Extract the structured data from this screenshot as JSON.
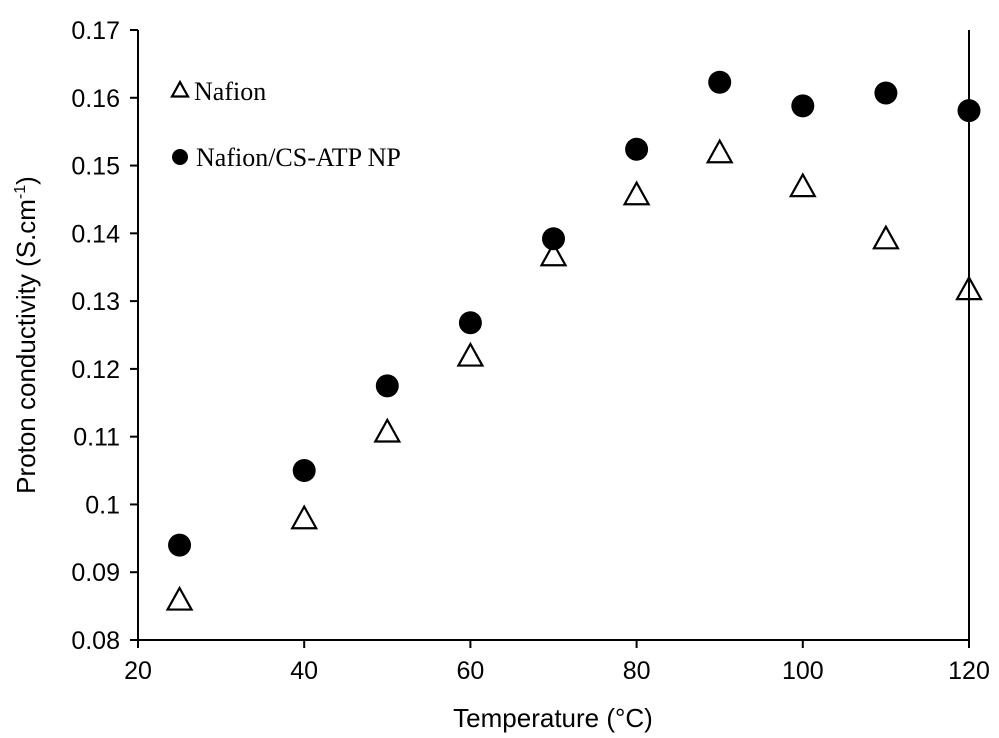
{
  "chart_data": {
    "type": "scatter",
    "title": "",
    "xlabel": "Temperature (°C)",
    "ylabel_main": "Proton conductivity (S.cm",
    "ylabel_sup": "-1",
    "ylabel_close": ")",
    "xlim": [
      20,
      120
    ],
    "ylim": [
      0.08,
      0.17
    ],
    "x_ticks": [
      20,
      40,
      60,
      80,
      100,
      120
    ],
    "x_tick_labels": [
      "20",
      "40",
      "60",
      "80",
      "100",
      "120"
    ],
    "y_ticks": [
      0.08,
      0.09,
      0.1,
      0.11,
      0.12,
      0.13,
      0.14,
      0.15,
      0.16,
      0.17
    ],
    "y_tick_labels": [
      "0.08",
      "0.09",
      "0.1",
      "0.11",
      "0.12",
      "0.13",
      "0.14",
      "0.15",
      "0.16",
      "0.17"
    ],
    "grid": false,
    "legend_position": "top-left",
    "series": [
      {
        "name": "Nafion",
        "marker": "open-triangle",
        "color": "#000000",
        "x": [
          25,
          40,
          50,
          60,
          70,
          80,
          90,
          100,
          110,
          120
        ],
        "y": [
          0.0857,
          0.0977,
          0.1105,
          0.1217,
          0.1365,
          0.1455,
          0.1517,
          0.1467,
          0.139,
          0.1315
        ]
      },
      {
        "name": "Nafion/CS-ATP NP",
        "marker": "filled-circle",
        "color": "#000000",
        "x": [
          25,
          40,
          50,
          60,
          70,
          80,
          90,
          100,
          110,
          120
        ],
        "y": [
          0.094,
          0.105,
          0.1175,
          0.1268,
          0.1392,
          0.1524,
          0.1623,
          0.1588,
          0.1607,
          0.1581
        ]
      }
    ]
  }
}
